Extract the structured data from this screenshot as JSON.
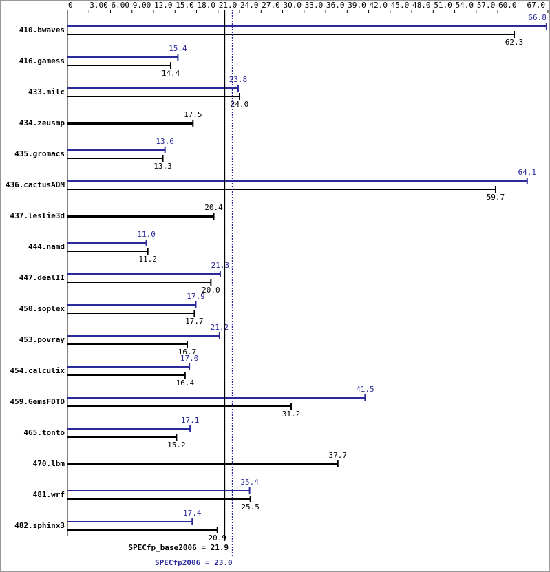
{
  "chart_data": {
    "type": "bar",
    "orientation": "horizontal",
    "categories": [
      "410.bwaves",
      "416.gamess",
      "433.milc",
      "434.zeusmp",
      "435.gromacs",
      "436.cactusADM",
      "437.leslie3d",
      "444.namd",
      "447.dealII",
      "450.soplex",
      "453.povray",
      "454.calculix",
      "459.GemsFDTD",
      "465.tonto",
      "470.lbm",
      "481.wrf",
      "482.sphinx3"
    ],
    "series": [
      {
        "color": "#2a2a9a",
        "values": [
          66.8,
          15.4,
          23.8,
          null,
          13.6,
          64.1,
          null,
          11.0,
          21.3,
          17.9,
          21.2,
          17.0,
          41.5,
          17.1,
          null,
          25.4,
          17.4
        ],
        "value_labels": [
          "66.8",
          "15.4",
          "23.8",
          null,
          "13.6",
          "64.1",
          null,
          "11.0",
          "21.3",
          "17.9",
          "21.2",
          "17.0",
          "41.5",
          "17.1",
          null,
          "25.4",
          "17.4"
        ]
      },
      {
        "color": "#000000",
        "values": [
          62.3,
          14.4,
          24.0,
          17.5,
          13.3,
          59.7,
          20.4,
          11.2,
          20.0,
          17.7,
          16.7,
          16.4,
          31.2,
          15.2,
          37.7,
          25.5,
          20.9
        ],
        "value_labels": [
          "62.3",
          "14.4",
          "24.0",
          "17.5",
          "13.3",
          "59.7",
          "20.4",
          "11.2",
          "20.0",
          "17.7",
          "16.7",
          "16.4",
          "31.2",
          "15.2",
          "37.7",
          "25.5",
          "20.9"
        ]
      }
    ],
    "xlim": [
      0,
      67.0
    ],
    "xticks": [
      0,
      {
        "value": 3,
        "label": "3.00"
      },
      {
        "value": 6,
        "label": "6.00"
      },
      {
        "value": 9,
        "label": "9.00"
      },
      {
        "value": 12,
        "label": "12.0"
      },
      {
        "value": 15,
        "label": "15.0"
      },
      {
        "value": 18,
        "label": "18.0"
      },
      {
        "value": 21,
        "label": "21.0"
      },
      {
        "value": 24,
        "label": "24.0"
      },
      {
        "value": 27,
        "label": "27.0"
      },
      {
        "value": 30,
        "label": "30.0"
      },
      {
        "value": 33,
        "label": "33.0"
      },
      {
        "value": 36,
        "label": "36.0"
      },
      {
        "value": 39,
        "label": "39.0"
      },
      {
        "value": 42,
        "label": "42.0"
      },
      {
        "value": 45,
        "label": "45.0"
      },
      {
        "value": 48,
        "label": "48.0"
      },
      {
        "value": 51,
        "label": "51.0"
      },
      {
        "value": 54,
        "label": "54.0"
      },
      {
        "value": 57,
        "label": "57.0"
      },
      {
        "value": 60,
        "label": "60.0"
      },
      {
        "value": 67,
        "label": "67.0"
      }
    ],
    "reference_lines": [
      {
        "value": 21.9,
        "label": "SPECfp_base2006 = 21.9",
        "color": "#000000",
        "style": "solid"
      },
      {
        "value": 23.0,
        "label": "SPECfp2006 = 23.0",
        "color": "#2a2a9a",
        "style": "dotted"
      }
    ]
  }
}
